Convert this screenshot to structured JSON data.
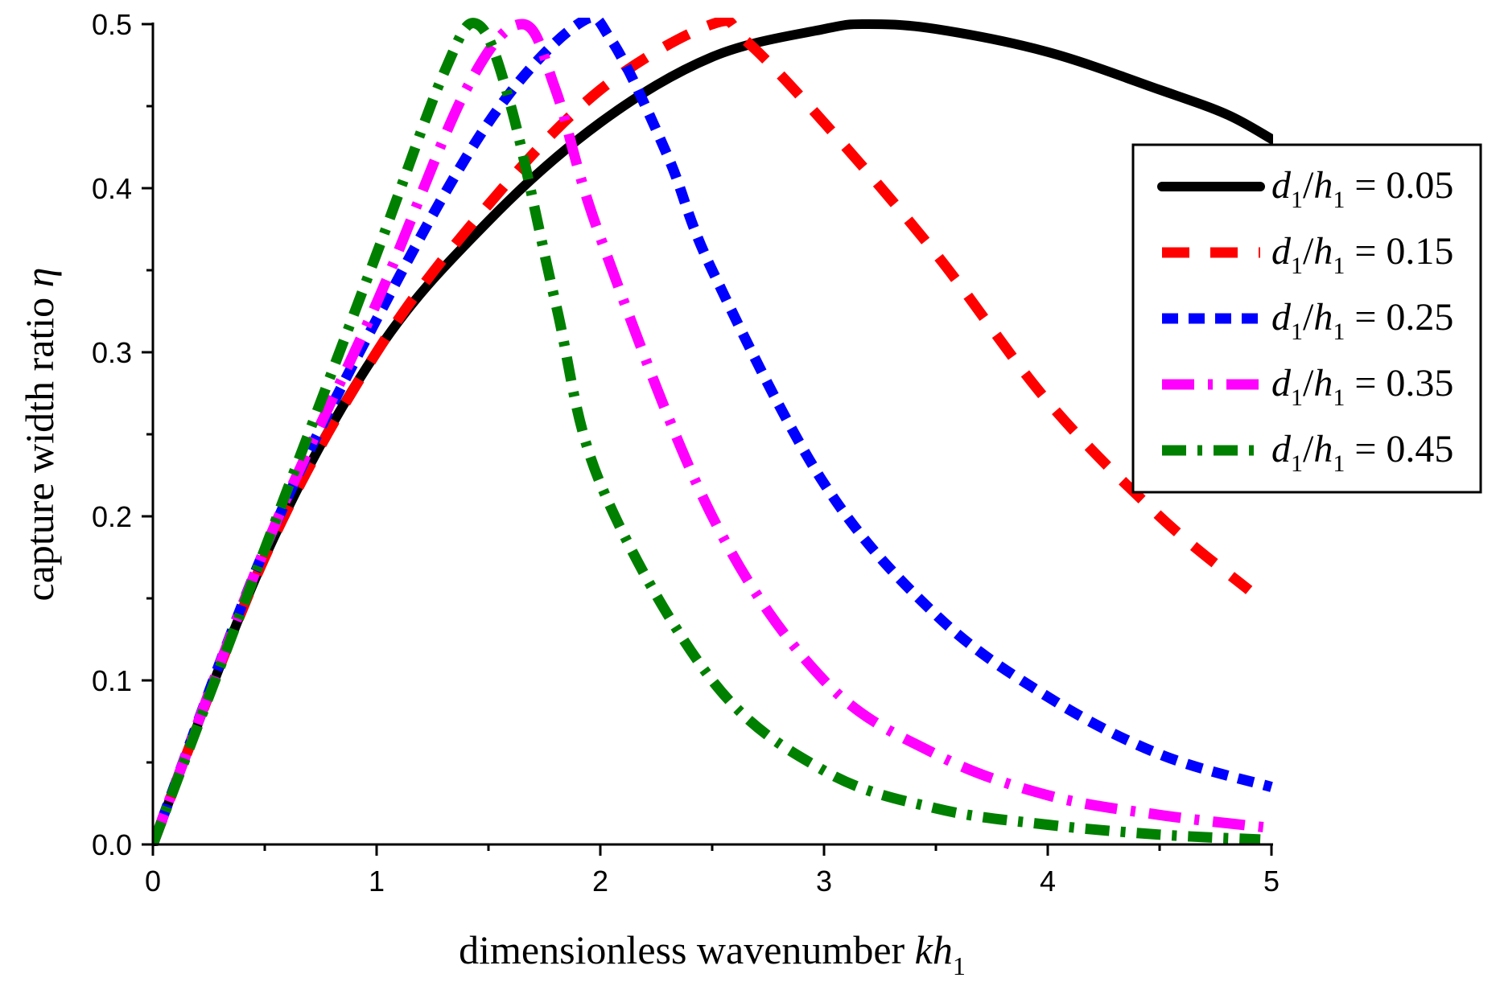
{
  "chart_data": {
    "type": "line",
    "title": "",
    "xlabel": {
      "main": "dimensionless wavenumber ",
      "var": "kh",
      "sub": "1"
    },
    "ylabel": {
      "main": "capture width ratio ",
      "var": "η"
    },
    "xlim": [
      0,
      5
    ],
    "ylim": [
      0,
      0.5
    ],
    "xticks": [
      0,
      1,
      2,
      3,
      4,
      5
    ],
    "xtick_labels": [
      "0",
      "1",
      "2",
      "3",
      "4",
      "5"
    ],
    "yticks": [
      0,
      0.1,
      0.2,
      0.3,
      0.4,
      0.5
    ],
    "ytick_labels": [
      "0.0",
      "0.1",
      "0.2",
      "0.3",
      "0.4",
      "0.5"
    ],
    "grid": false,
    "legend_position": "top-right",
    "series": [
      {
        "name": "d1/h1 = 0.05",
        "label": {
          "d": "d",
          "dsub": "1",
          "slash": "/",
          "h": "h",
          "hsub": "1",
          "eq": " = 0.05"
        },
        "color": "#000000",
        "dash": "solid",
        "x": [
          0,
          0.5,
          1.0,
          1.5,
          2.0,
          2.5,
          3.0,
          3.2,
          3.5,
          4.0,
          4.5,
          4.8,
          5.0
        ],
        "y": [
          0,
          0.175,
          0.3,
          0.38,
          0.44,
          0.48,
          0.497,
          0.5,
          0.497,
          0.483,
          0.46,
          0.445,
          0.43
        ]
      },
      {
        "name": "d1/h1 = 0.15",
        "label": {
          "d": "d",
          "dsub": "1",
          "slash": "/",
          "h": "h",
          "hsub": "1",
          "eq": " = 0.15"
        },
        "color": "#ff0000",
        "dash": "dash",
        "x": [
          0,
          0.5,
          1.0,
          1.5,
          2.0,
          2.5,
          2.65,
          3.0,
          3.5,
          4.0,
          4.5,
          4.9
        ],
        "y": [
          0,
          0.175,
          0.3,
          0.39,
          0.46,
          0.5,
          0.49,
          0.44,
          0.36,
          0.27,
          0.2,
          0.155
        ]
      },
      {
        "name": "d1/h1 = 0.25",
        "label": {
          "d": "d",
          "dsub": "1",
          "slash": "/",
          "h": "h",
          "hsub": "1",
          "eq": " = 0.25"
        },
        "color": "#0000ff",
        "dash": "shortdash",
        "x": [
          0,
          0.5,
          1.0,
          1.5,
          1.9,
          2.05,
          2.3,
          2.5,
          3.0,
          3.5,
          4.0,
          4.5,
          5.0
        ],
        "y": [
          0,
          0.18,
          0.32,
          0.44,
          0.5,
          0.49,
          0.42,
          0.35,
          0.22,
          0.14,
          0.09,
          0.055,
          0.035
        ]
      },
      {
        "name": "d1/h1 = 0.35",
        "label": {
          "d": "d",
          "dsub": "1",
          "slash": "/",
          "h": "h",
          "hsub": "1",
          "eq": " = 0.35"
        },
        "color": "#ff00ff",
        "dash": "dashdot",
        "x": [
          0,
          0.5,
          1.0,
          1.4,
          1.65,
          1.8,
          2.0,
          2.5,
          3.0,
          3.5,
          4.0,
          4.5,
          5.0
        ],
        "y": [
          0,
          0.18,
          0.33,
          0.46,
          0.5,
          0.46,
          0.37,
          0.2,
          0.1,
          0.055,
          0.03,
          0.018,
          0.01
        ]
      },
      {
        "name": "d1/h1 = 0.45",
        "label": {
          "d": "d",
          "dsub": "1",
          "slash": "/",
          "h": "h",
          "hsub": "1",
          "eq": " = 0.45"
        },
        "color": "#008000",
        "dash": "dashdotdot",
        "x": [
          0,
          0.5,
          1.0,
          1.3,
          1.45,
          1.6,
          1.8,
          2.0,
          2.5,
          3.0,
          3.5,
          4.0,
          4.5,
          4.95
        ],
        "y": [
          0,
          0.18,
          0.36,
          0.47,
          0.5,
          0.45,
          0.33,
          0.22,
          0.1,
          0.045,
          0.022,
          0.012,
          0.006,
          0.003
        ]
      }
    ]
  }
}
